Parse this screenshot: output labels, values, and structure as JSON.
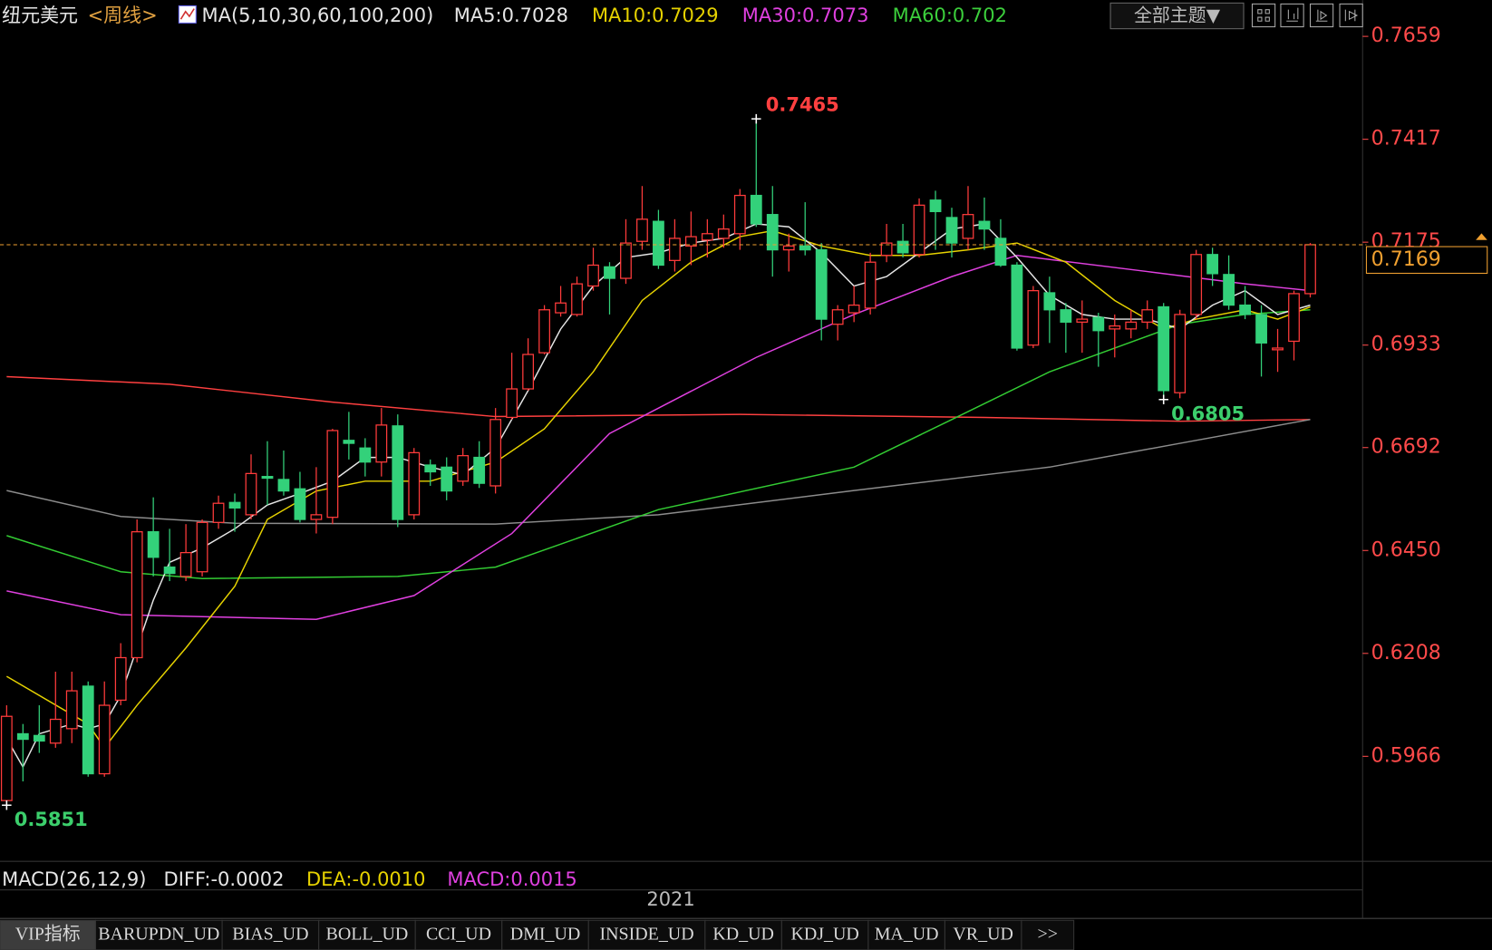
{
  "header": {
    "symbol": "纽元美元",
    "period": "<周线>",
    "indicator": "MA(5,10,30,60,100,200)",
    "ma_values": [
      {
        "text": "MA5:0.7028",
        "color": "#e6e6e6"
      },
      {
        "text": "MA10:0.7029",
        "color": "#e6d200"
      },
      {
        "text": "MA30:0.7073",
        "color": "#e040e0"
      },
      {
        "text": "MA60:0.702",
        "color": "#3ccf3c"
      }
    ],
    "theme_button": "全部主题▼"
  },
  "chart_data": {
    "type": "candlestick",
    "ylim": [
      0.5719,
      0.7677
    ],
    "yticks": [
      0.7659,
      0.7417,
      0.7175,
      0.6933,
      0.6692,
      {
        "value": 0.645,
        "label": "0.6450"
      },
      0.6208,
      0.5966
    ],
    "x_label": "2021",
    "up_color": "#ff3b3b",
    "down_color": "#33d17a",
    "tick_color": "#ff4a4a",
    "open": [
      0.5862,
      0.6019,
      0.6015,
      0.5997,
      0.6031,
      0.6131,
      0.5925,
      0.6098,
      0.6198,
      0.6494,
      0.6411,
      0.6389,
      0.64,
      0.6516,
      0.6563,
      0.6534,
      0.6624,
      0.6617,
      0.6595,
      0.6523,
      0.6528,
      0.6709,
      0.6691,
      0.6658,
      0.6743,
      0.6534,
      0.6651,
      0.6646,
      0.6613,
      0.6669,
      0.6602,
      0.6763,
      0.683,
      0.6915,
      0.7009,
      0.7005,
      0.7072,
      0.7117,
      0.709,
      0.7177,
      0.7224,
      0.7132,
      0.7166,
      0.718,
      0.7184,
      0.7195,
      0.7285,
      0.724,
      0.7157,
      0.7166,
      0.7157,
      0.6982,
      0.7009,
      0.702,
      0.7144,
      0.7177,
      0.7146,
      0.7274,
      0.7233,
      0.7184,
      0.7224,
      0.7184,
      0.7121,
      0.6933,
      0.7056,
      0.7016,
      0.6987,
      0.6998,
      0.6971,
      0.6971,
      0.6987,
      0.7023,
      0.6821,
      0.7005,
      0.7146,
      0.7099,
      0.7027,
      0.7005,
      0.6922,
      0.6942,
      0.7054
    ],
    "high": [
      0.6086,
      0.6042,
      0.6086,
      0.6165,
      0.6165,
      0.6142,
      0.6142,
      0.6232,
      0.6523,
      0.6575,
      0.6501,
      0.6512,
      0.6523,
      0.6579,
      0.6584,
      0.6676,
      0.6707,
      0.6685,
      0.6635,
      0.6646,
      0.6736,
      0.6776,
      0.6714,
      0.6785,
      0.677,
      0.6691,
      0.6664,
      0.6669,
      0.6691,
      0.6707,
      0.6785,
      0.6915,
      0.6949,
      0.7027,
      0.7072,
      0.7094,
      0.7162,
      0.7128,
      0.7229,
      0.7307,
      0.7251,
      0.7229,
      0.7247,
      0.7229,
      0.724,
      0.73,
      0.7465,
      0.7307,
      0.7195,
      0.7269,
      0.7173,
      0.7027,
      0.7072,
      0.715,
      0.7218,
      0.7218,
      0.7278,
      0.7296,
      0.7256,
      0.7307,
      0.728,
      0.7229,
      0.7128,
      0.7072,
      0.7094,
      0.7032,
      0.7038,
      0.7009,
      0.7005,
      0.7016,
      0.7038,
      0.7032,
      0.7016,
      0.7157,
      0.7162,
      0.7144,
      0.7072,
      0.7027,
      0.6971,
      0.7061,
      0.7173
    ],
    "low": [
      0.5851,
      0.5907,
      0.5974,
      0.5986,
      0.5997,
      0.5918,
      0.5918,
      0.6086,
      0.6187,
      0.6389,
      0.6378,
      0.6378,
      0.6389,
      0.6501,
      0.6494,
      0.6523,
      0.6557,
      0.6579,
      0.6516,
      0.649,
      0.6512,
      0.6664,
      0.6624,
      0.6624,
      0.6505,
      0.6523,
      0.6602,
      0.6568,
      0.6602,
      0.6597,
      0.6584,
      0.6758,
      0.6826,
      0.6911,
      0.7,
      0.7,
      0.7061,
      0.7005,
      0.7077,
      0.7157,
      0.7112,
      0.7106,
      0.7121,
      0.7139,
      0.7162,
      0.7157,
      0.7211,
      0.7094,
      0.7106,
      0.7144,
      0.6944,
      0.6944,
      0.6987,
      0.7005,
      0.7128,
      0.7139,
      0.7139,
      0.7157,
      0.7139,
      0.7157,
      0.7157,
      0.7117,
      0.692,
      0.6926,
      0.6938,
      0.6915,
      0.6915,
      0.6882,
      0.6904,
      0.6949,
      0.6971,
      0.6805,
      0.6808,
      0.6994,
      0.7072,
      0.7016,
      0.6994,
      0.6859,
      0.687,
      0.6897,
      0.7045
    ],
    "close": [
      0.606,
      0.6006,
      0.6002,
      0.6053,
      0.612,
      0.5925,
      0.6086,
      0.6198,
      0.6494,
      0.6434,
      0.6396,
      0.6445,
      0.6516,
      0.6561,
      0.655,
      0.6631,
      0.662,
      0.659,
      0.6523,
      0.6534,
      0.6732,
      0.6702,
      0.6658,
      0.6745,
      0.6523,
      0.668,
      0.6635,
      0.659,
      0.6673,
      0.6608,
      0.6758,
      0.683,
      0.6911,
      0.7016,
      0.7032,
      0.7077,
      0.7121,
      0.709,
      0.7173,
      0.7229,
      0.7121,
      0.7184,
      0.7188,
      0.7195,
      0.7206,
      0.7285,
      0.7218,
      0.7157,
      0.7166,
      0.7157,
      0.6994,
      0.7016,
      0.7027,
      0.7128,
      0.7173,
      0.715,
      0.7262,
      0.7247,
      0.7173,
      0.724,
      0.7206,
      0.7121,
      0.6926,
      0.7061,
      0.7016,
      0.6987,
      0.6994,
      0.6967,
      0.6978,
      0.6987,
      0.7016,
      0.6826,
      0.7005,
      0.7146,
      0.7101,
      0.7027,
      0.7005,
      0.6938,
      0.6926,
      0.7054,
      0.7169
    ],
    "ma_lines": [
      {
        "color": "#ff4040",
        "x": [
          0,
          10,
          20,
          30,
          45,
          60,
          72,
          80
        ],
        "values": [
          0.6859,
          0.6841,
          0.6799,
          0.6765,
          0.677,
          0.6763,
          0.6754,
          0.6758
        ]
      },
      {
        "color": "#8c8c8c",
        "x": [
          0,
          7,
          14,
          30,
          40,
          52,
          64,
          72,
          80
        ],
        "values": [
          0.6591,
          0.653,
          0.6514,
          0.6512,
          0.6534,
          0.6591,
          0.6646,
          0.6702,
          0.6758
        ]
      },
      {
        "color": "#33cc33",
        "x": [
          0,
          7,
          12,
          24,
          30,
          40,
          52,
          58,
          64,
          72,
          76,
          80
        ],
        "values": [
          0.6485,
          0.64,
          0.6384,
          0.6389,
          0.6411,
          0.6546,
          0.6646,
          0.6758,
          0.687,
          0.6982,
          0.7005,
          0.7016
        ]
      },
      {
        "color": "#e040e0",
        "x": [
          0,
          7,
          19,
          25,
          31,
          37,
          46,
          52,
          58,
          62,
          70,
          76,
          80
        ],
        "values": [
          0.6355,
          0.6299,
          0.6288,
          0.6344,
          0.649,
          0.6725,
          0.6904,
          0.7005,
          0.7094,
          0.7144,
          0.7106,
          0.7077,
          0.7061
        ]
      },
      {
        "color": "#e6d200",
        "x": [
          0,
          5,
          6,
          8,
          11,
          14,
          16,
          19,
          22,
          26,
          30,
          33,
          36,
          39,
          42,
          45,
          47,
          50,
          53,
          56,
          59,
          62,
          65,
          68,
          71,
          73,
          76,
          78,
          80
        ],
        "values": [
          0.6154,
          0.6042,
          0.5986,
          0.6086,
          0.6221,
          0.6366,
          0.6523,
          0.659,
          0.6613,
          0.6613,
          0.6658,
          0.6736,
          0.687,
          0.7038,
          0.7128,
          0.7188,
          0.7202,
          0.7166,
          0.7144,
          0.7144,
          0.7157,
          0.7173,
          0.7128,
          0.7038,
          0.6971,
          0.6994,
          0.7016,
          0.6994,
          0.7023
        ]
      },
      {
        "color": "#e6e6e6",
        "x": [
          0,
          1,
          2,
          4,
          5,
          6,
          7,
          9,
          10,
          12,
          14,
          16,
          18,
          20,
          22,
          24,
          26,
          28,
          30,
          32,
          34,
          36,
          38,
          40,
          42,
          44,
          46,
          48,
          50,
          52,
          54,
          56,
          58,
          60,
          62,
          64,
          66,
          68,
          70,
          72,
          74,
          76,
          78,
          80
        ],
        "values": [
          0.6008,
          0.5941,
          0.6019,
          0.6042,
          0.6031,
          0.6042,
          0.6109,
          0.6333,
          0.6422,
          0.6456,
          0.6501,
          0.6557,
          0.6584,
          0.6613,
          0.6669,
          0.6669,
          0.6646,
          0.6628,
          0.6691,
          0.6826,
          0.6971,
          0.7072,
          0.7139,
          0.715,
          0.7173,
          0.7184,
          0.7218,
          0.7211,
          0.715,
          0.7072,
          0.7094,
          0.715,
          0.7206,
          0.7218,
          0.7139,
          0.705,
          0.7005,
          0.6994,
          0.6994,
          0.6971,
          0.7027,
          0.7061,
          0.7005,
          0.7027
        ]
      }
    ],
    "last_price": 0.7169,
    "last_price_color": "#f0a030",
    "extremes": [
      {
        "index": 46,
        "value": 0.7465,
        "color": "#ff4040"
      },
      {
        "index": 0,
        "value": 0.5851,
        "color": "#3ccf6c"
      },
      {
        "index": 71,
        "value": 0.6805,
        "color": "#3ccf6c"
      }
    ]
  },
  "macd": {
    "title": "MACD(26,12,9)",
    "items": [
      {
        "text": "DIFF:-0.0002",
        "color": "#e6e6e6"
      },
      {
        "text": "DEA:-0.0010",
        "color": "#e6d200"
      },
      {
        "text": "MACD:0.0015",
        "color": "#e040e0"
      }
    ]
  },
  "tabs": [
    "VIP指标",
    "BARUPDN_UD",
    "BIAS_UD",
    "BOLL_UD",
    "CCI_UD",
    "DMI_UD",
    "INSIDE_UD",
    "KD_UD",
    "KDJ_UD",
    "MA_UD",
    "VR_UD",
    ">>"
  ]
}
